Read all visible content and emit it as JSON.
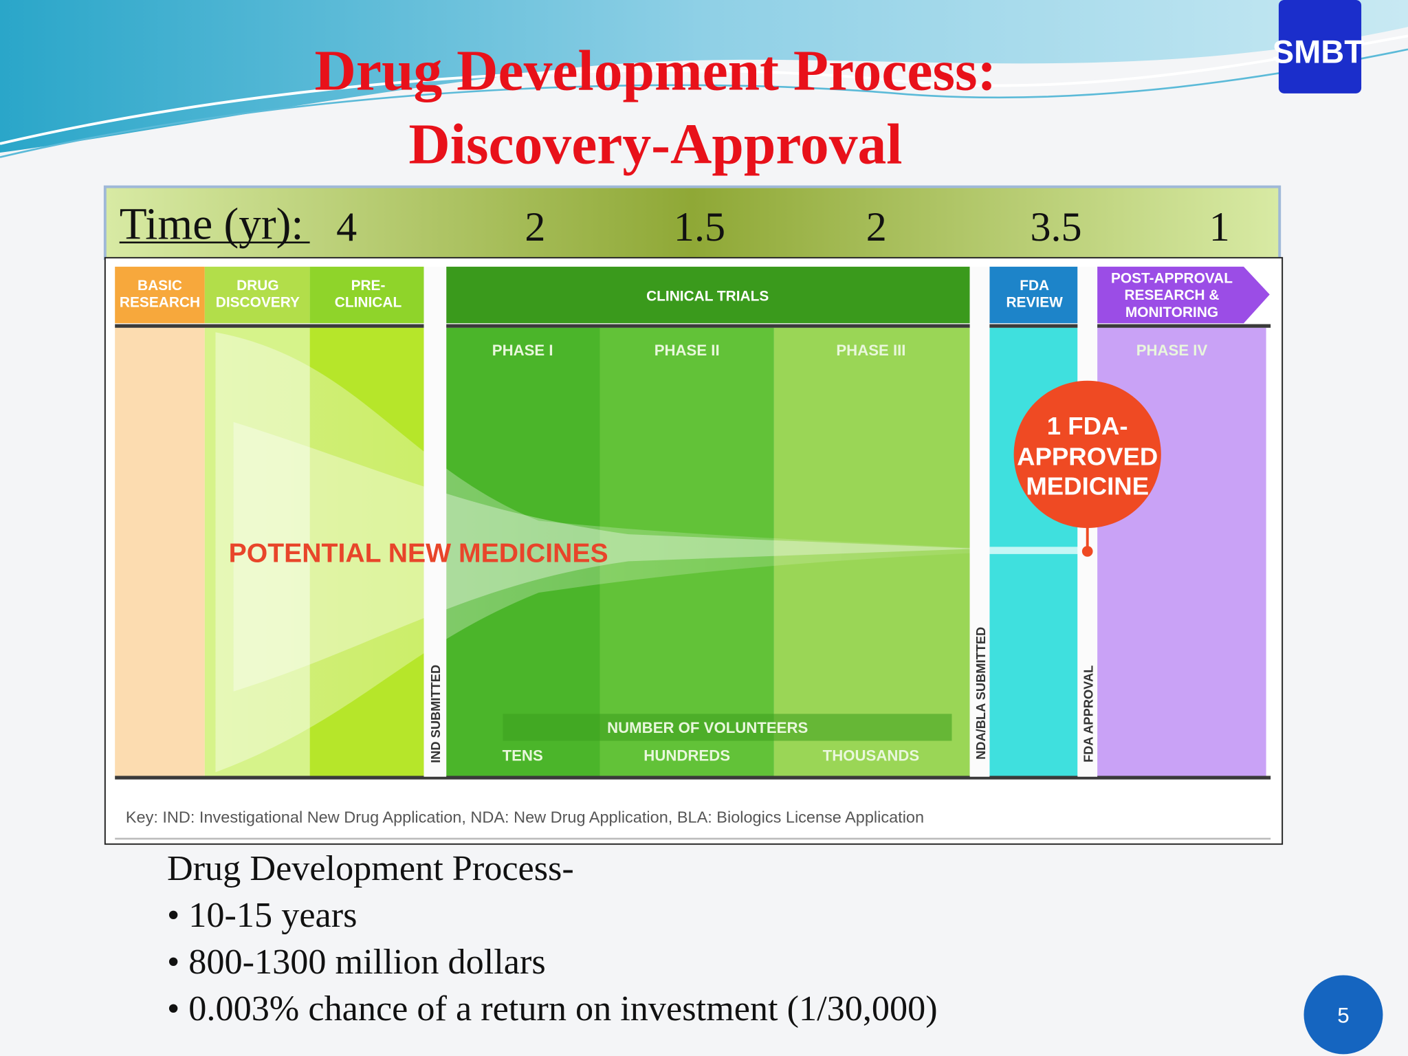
{
  "logo": "SMBT",
  "title": {
    "line1": "Drug Development Process:",
    "line2": "Discovery-Approval"
  },
  "time_bar": {
    "label": "Time (yr):",
    "durations": [
      4,
      2,
      1.5,
      2,
      3.5,
      1
    ]
  },
  "diagram": {
    "stages": [
      [
        "BASIC",
        "RESEARCH"
      ],
      [
        "DRUG",
        "DISCOVERY"
      ],
      [
        "PRE-",
        "CLINICAL"
      ],
      [
        "CLINICAL TRIALS"
      ],
      [
        "FDA",
        "REVIEW"
      ],
      [
        "POST-APPROVAL",
        "RESEARCH &",
        "MONITORING"
      ]
    ],
    "phases": [
      "PHASE I",
      "PHASE II",
      "PHASE III",
      "PHASE IV"
    ],
    "milestones": [
      "IND SUBMITTED",
      "NDA/BLA SUBMITTED",
      "FDA APPROVAL"
    ],
    "funnel_label": "POTENTIAL NEW MEDICINES",
    "approved": [
      "1 FDA-",
      "APPROVED",
      "MEDICINE"
    ],
    "volunteers": {
      "label": "NUMBER OF VOLUNTEERS",
      "levels": [
        "TENS",
        "HUNDREDS",
        "THOUSANDS"
      ]
    },
    "key": "Key: IND: Investigational New Drug Application, NDA: New Drug Application, BLA: Biologics License Application"
  },
  "summary": {
    "heading": "Drug Development Process-",
    "bullets": [
      "• 10-15 years",
      "• 800-1300 million dollars",
      "• 0.003% chance of a return on investment (1/30,000)"
    ]
  },
  "page_number": 5
}
